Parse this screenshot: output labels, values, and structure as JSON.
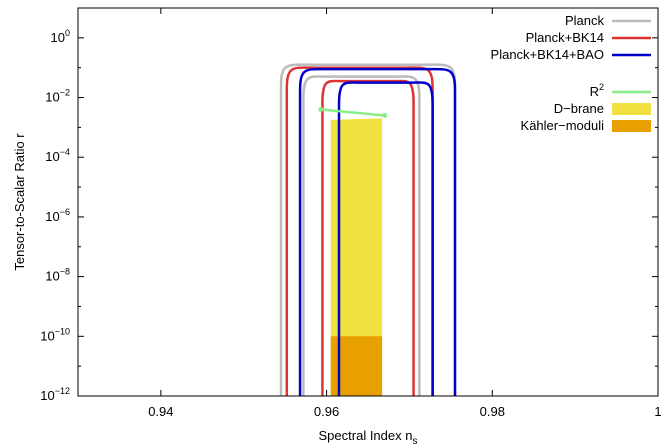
{
  "chart_data": {
    "type": "area",
    "xlabel": "Spectral Index n",
    "xlabel_sub": "s",
    "ylabel": "Tensor-to-Scalar Ratio r",
    "xlim": [
      0.93,
      1.0
    ],
    "ylim_log10": [
      -12,
      1
    ],
    "y_scale": "log",
    "grid": false,
    "legend_position": "top-right",
    "x_ticks": [
      {
        "value": 0.94,
        "label": "0.94"
      },
      {
        "value": 0.96,
        "label": "0.96"
      },
      {
        "value": 0.98,
        "label": "0.98"
      },
      {
        "value": 1.0,
        "label": "1"
      }
    ],
    "y_ticks": [
      {
        "exp": 0,
        "base": "10",
        "sup": "0"
      },
      {
        "exp": -2,
        "base": "10",
        "sup": "−2"
      },
      {
        "exp": -4,
        "base": "10",
        "sup": "−4"
      },
      {
        "exp": -6,
        "base": "10",
        "sup": "−6"
      },
      {
        "exp": -8,
        "base": "10",
        "sup": "−8"
      },
      {
        "exp": -10,
        "base": "10",
        "sup": "−10"
      },
      {
        "exp": -12,
        "base": "10",
        "sup": "−12"
      }
    ],
    "contours": [
      {
        "name": "Planck",
        "color": "#bbbbbb",
        "outer": {
          "x1": 0.9545,
          "x2": 0.9755,
          "top_log_r": -0.9
        },
        "inner": {
          "x1": 0.9572,
          "x2": 0.9712,
          "top_log_r": -1.3
        }
      },
      {
        "name": "Planck+BK14",
        "color": "#dd3333",
        "outer": {
          "x1": 0.9552,
          "x2": 0.9728,
          "top_log_r": -1.0
        },
        "inner": {
          "x1": 0.9595,
          "x2": 0.9705,
          "top_log_r": -1.45
        }
      },
      {
        "name": "Planck+BK14+BAO",
        "color": "#0000cc",
        "outer": {
          "x1": 0.9568,
          "x2": 0.9755,
          "top_log_r": -1.05
        },
        "inner": {
          "x1": 0.9615,
          "x2": 0.9728,
          "top_log_r": -1.5
        }
      }
    ],
    "models": [
      {
        "name": "R",
        "name_sup": "2",
        "type": "line",
        "color": "#88ee88",
        "points": [
          {
            "x": 0.9593,
            "log_r": -2.4
          },
          {
            "x": 0.967,
            "log_r": -2.6
          }
        ]
      },
      {
        "name": "D−brane",
        "type": "band",
        "color": "#f0e040",
        "x1": 0.9605,
        "x2": 0.9667,
        "top_log_r_left": -2.75,
        "top_log_r_right": -2.7,
        "bottom_log_r": -12
      },
      {
        "name": "Kähler−moduli",
        "type": "band",
        "color": "#e8a000",
        "x1": 0.9605,
        "x2": 0.9667,
        "top_log_r": -10,
        "bottom_log_r": -12
      }
    ]
  }
}
